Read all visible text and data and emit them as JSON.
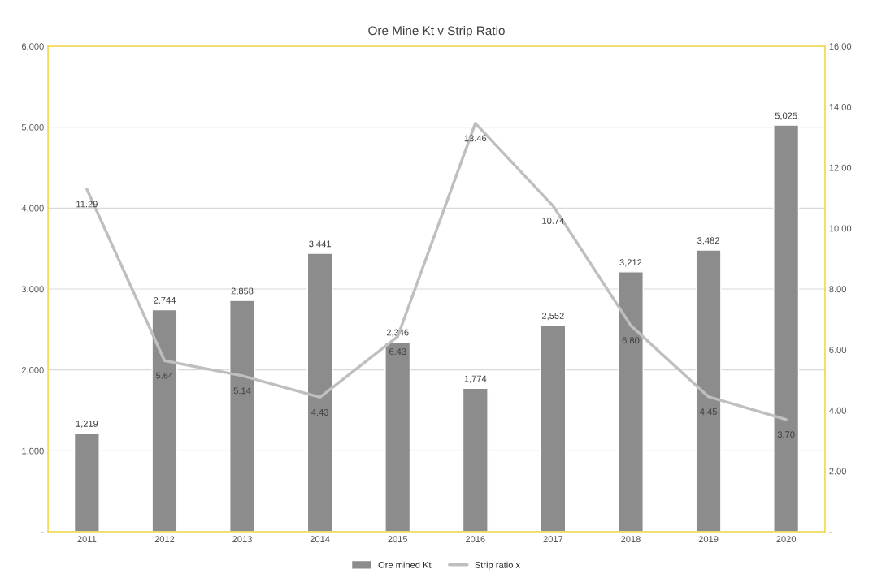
{
  "chart_data": {
    "type": "bar",
    "title": "Ore Mine Kt v Strip Ratio",
    "categories": [
      "2011",
      "2012",
      "2013",
      "2014",
      "2015",
      "2016",
      "2017",
      "2018",
      "2019",
      "2020"
    ],
    "series": [
      {
        "name": "Ore mined Kt",
        "color": "#8c8c8c",
        "values": [
          1219,
          2744,
          2858,
          3441,
          2346,
          1774,
          2552,
          3212,
          3482,
          5025
        ],
        "value_labels": [
          "1,219",
          "2,744",
          "2,858",
          "3,441",
          "2,346",
          "1,774",
          "2,552",
          "3,212",
          "3,482",
          "5,025"
        ]
      },
      {
        "name": "Strip ratio x",
        "type": "line",
        "axis": "y2",
        "color": "#bfbfbf",
        "values": [
          11.29,
          5.64,
          5.14,
          4.43,
          6.43,
          13.46,
          10.74,
          6.8,
          4.45,
          3.7
        ],
        "value_labels": [
          "11.29",
          "5.64",
          "5.14",
          "4.43",
          "6.43",
          "13.46",
          "10.74",
          "6.80",
          "4.45",
          "3.70"
        ]
      }
    ],
    "ylim": [
      0,
      6000
    ],
    "yticks": [
      {
        "value": 0,
        "label": "-"
      },
      {
        "value": 1000,
        "label": "1,000"
      },
      {
        "value": 2000,
        "label": "2,000"
      },
      {
        "value": 3000,
        "label": "3,000"
      },
      {
        "value": 4000,
        "label": "4,000"
      },
      {
        "value": 5000,
        "label": "5,000"
      },
      {
        "value": 6000,
        "label": "6,000"
      }
    ],
    "y2lim": [
      0,
      16
    ],
    "y2ticks": [
      {
        "value": 0,
        "label": "-"
      },
      {
        "value": 2,
        "label": "2.00"
      },
      {
        "value": 4,
        "label": "4.00"
      },
      {
        "value": 6,
        "label": "6.00"
      },
      {
        "value": 8,
        "label": "8.00"
      },
      {
        "value": 10,
        "label": "10.00"
      },
      {
        "value": 12,
        "label": "12.00"
      },
      {
        "value": 14,
        "label": "14.00"
      },
      {
        "value": 16,
        "label": "16.00"
      }
    ],
    "grid": "y",
    "legend": "bottom"
  }
}
